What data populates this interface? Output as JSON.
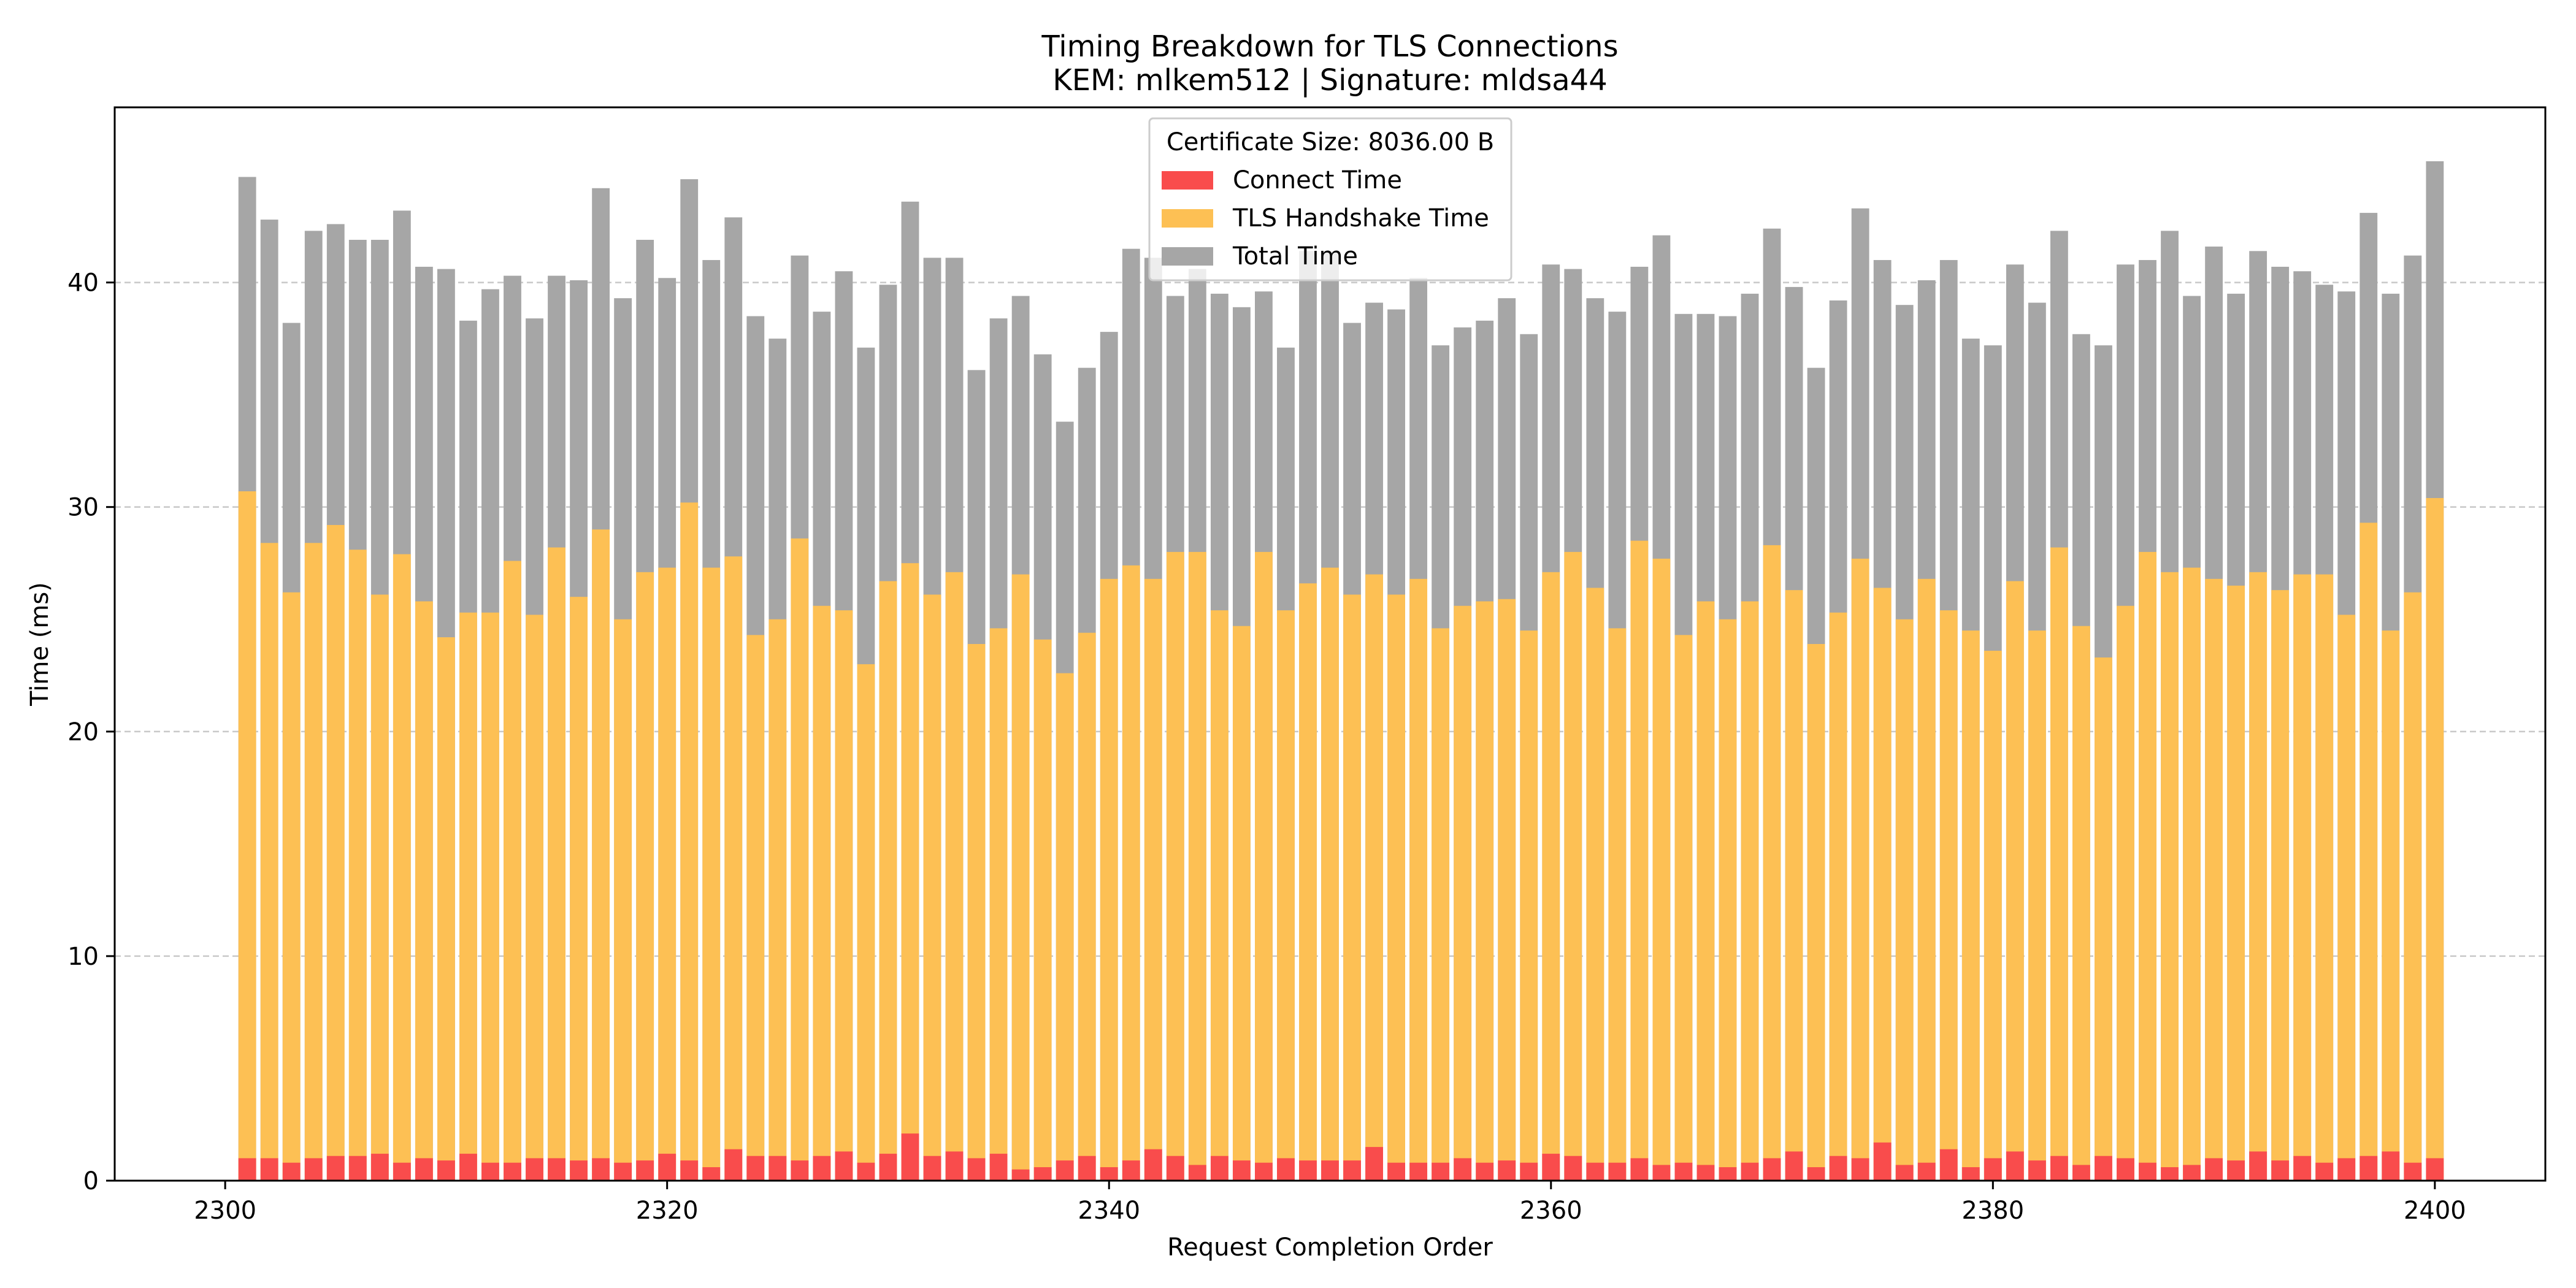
{
  "chart_data": {
    "type": "bar",
    "stacked_overlay": true,
    "title": "Timing Breakdown for TLS Connections",
    "subtitle": "KEM: mlkem512 | Signature: mldsa44",
    "xlabel": "Request Completion Order",
    "ylabel": "Time (ms)",
    "xlim": [
      2295,
      2405
    ],
    "ylim": [
      0,
      47.8
    ],
    "x_ticks": [
      2300,
      2320,
      2340,
      2360,
      2380,
      2400
    ],
    "y_ticks": [
      0,
      10,
      20,
      30,
      40
    ],
    "grid": "y-dashed",
    "legend": {
      "title": "Certificate Size: 8036.00 B",
      "placement": "top-center",
      "entries": [
        "Connect Time",
        "TLS Handshake Time",
        "Total Time"
      ]
    },
    "colors": {
      "connect": "#f94c4c",
      "tls": "#fdc054",
      "total": "#a6a6a6",
      "grid": "#c8c8c8"
    },
    "x_start": 2301,
    "series": [
      {
        "name": "Total Time",
        "values": [
          44.7,
          42.8,
          38.2,
          42.3,
          42.6,
          41.9,
          41.9,
          43.2,
          40.7,
          40.6,
          38.3,
          39.7,
          40.3,
          38.4,
          40.3,
          40.1,
          44.2,
          39.3,
          41.9,
          40.2,
          44.6,
          41.0,
          42.9,
          38.5,
          37.5,
          41.2,
          38.7,
          40.5,
          37.1,
          39.9,
          43.6,
          41.1,
          41.1,
          36.1,
          38.4,
          39.4,
          36.8,
          33.8,
          36.2,
          37.8,
          41.5,
          41.1,
          39.4,
          40.6,
          39.5,
          38.9,
          39.6,
          37.1,
          41.4,
          41.4,
          38.2,
          39.1,
          38.8,
          40.2,
          37.2,
          38.0,
          38.3,
          39.3,
          37.7,
          40.8,
          40.6,
          39.3,
          38.7,
          40.7,
          42.1,
          38.6,
          38.6,
          38.5,
          39.5,
          42.4,
          39.8,
          36.2,
          39.2,
          43.3,
          41.0,
          39.0,
          40.1,
          41.0,
          37.5,
          37.2,
          40.8,
          39.1,
          42.3,
          37.7,
          37.2,
          40.8,
          41.0,
          42.3,
          39.4,
          41.6,
          39.5,
          41.4,
          40.7,
          40.5,
          39.9,
          39.6,
          43.1,
          39.5,
          41.2,
          45.4
        ]
      },
      {
        "name": "TLS Handshake Time",
        "values": [
          30.7,
          28.4,
          26.2,
          28.4,
          29.2,
          28.1,
          26.1,
          27.9,
          25.8,
          24.2,
          25.3,
          25.3,
          27.6,
          25.2,
          28.2,
          26.0,
          29.0,
          25.0,
          27.1,
          27.3,
          30.2,
          27.3,
          27.8,
          24.3,
          25.0,
          28.6,
          25.6,
          25.4,
          23.0,
          26.7,
          27.5,
          26.1,
          27.1,
          23.9,
          24.6,
          27.0,
          24.1,
          22.6,
          24.4,
          26.8,
          27.4,
          26.8,
          28.0,
          28.0,
          25.4,
          24.7,
          28.0,
          25.4,
          26.6,
          27.3,
          26.1,
          27.0,
          26.1,
          26.8,
          24.6,
          25.6,
          25.8,
          25.9,
          24.5,
          27.1,
          28.0,
          26.4,
          24.6,
          28.5,
          27.7,
          24.3,
          25.8,
          25.0,
          25.8,
          28.3,
          26.3,
          23.9,
          25.3,
          27.7,
          26.4,
          25.0,
          26.8,
          25.4,
          24.5,
          23.6,
          26.7,
          24.5,
          28.2,
          24.7,
          23.3,
          25.6,
          28.0,
          27.1,
          27.3,
          26.8,
          26.5,
          27.1,
          26.3,
          27.0,
          27.0,
          25.2,
          29.3,
          24.5,
          26.2,
          30.4
        ]
      },
      {
        "name": "Connect Time",
        "values": [
          1.0,
          1.0,
          0.8,
          1.0,
          1.1,
          1.1,
          1.2,
          0.8,
          1.0,
          0.9,
          1.2,
          0.8,
          0.8,
          1.0,
          1.0,
          0.9,
          1.0,
          0.8,
          0.9,
          1.2,
          0.9,
          0.6,
          1.4,
          1.1,
          1.1,
          0.9,
          1.1,
          1.3,
          0.8,
          1.2,
          2.1,
          1.1,
          1.3,
          1.0,
          1.2,
          0.5,
          0.6,
          0.9,
          1.1,
          0.6,
          0.9,
          1.4,
          1.1,
          0.7,
          1.1,
          0.9,
          0.8,
          1.0,
          0.9,
          0.9,
          0.9,
          1.5,
          0.8,
          0.8,
          0.8,
          1.0,
          0.8,
          0.9,
          0.8,
          1.2,
          1.1,
          0.8,
          0.8,
          1.0,
          0.7,
          0.8,
          0.7,
          0.6,
          0.8,
          1.0,
          1.3,
          0.6,
          1.1,
          1.0,
          1.7,
          0.7,
          0.8,
          1.4,
          0.6,
          1.0,
          1.3,
          0.9,
          1.1,
          0.7,
          1.1,
          1.0,
          0.8,
          0.6,
          0.7,
          1.0,
          0.9,
          1.3,
          0.9,
          1.1,
          0.8,
          1.0,
          1.1,
          1.3,
          0.8,
          1.0
        ]
      }
    ]
  }
}
